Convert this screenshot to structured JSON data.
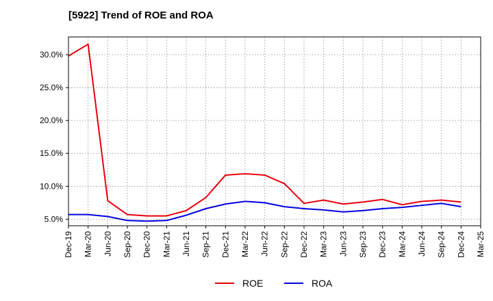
{
  "chart_data": {
    "type": "line",
    "title": "[5922]  Trend of ROE and ROA",
    "xlabel": "",
    "ylabel": "",
    "x": [
      "Dec-19",
      "Mar-20",
      "Jun-20",
      "Sep-20",
      "Dec-20",
      "Mar-21",
      "Jun-21",
      "Sep-21",
      "Dec-21",
      "Mar-22",
      "Jun-22",
      "Sep-22",
      "Dec-22",
      "Mar-23",
      "Jun-23",
      "Sep-23",
      "Dec-23",
      "Mar-24",
      "Jun-24",
      "Sep-24",
      "Dec-24",
      "Mar-25"
    ],
    "y_ticks": [
      "5.0%",
      "10.0%",
      "15.0%",
      "20.0%",
      "25.0%",
      "30.0%"
    ],
    "ylim": [
      4.0,
      32.7
    ],
    "grid": true,
    "legend_position": "bottom",
    "series": [
      {
        "name": "ROE",
        "color": "#e8000b",
        "values": [
          29.8,
          31.6,
          7.8,
          5.7,
          5.5,
          5.5,
          6.3,
          8.3,
          11.7,
          11.9,
          11.7,
          10.4,
          7.4,
          7.9,
          7.3,
          7.6,
          8.0,
          7.2,
          7.7,
          7.9,
          7.6,
          null
        ]
      },
      {
        "name": "ROA",
        "color": "#0000e0",
        "values": [
          5.7,
          5.7,
          5.4,
          4.8,
          4.7,
          4.8,
          5.6,
          6.6,
          7.3,
          7.7,
          7.5,
          6.9,
          6.6,
          6.4,
          6.1,
          6.3,
          6.6,
          6.8,
          7.1,
          7.4,
          6.9,
          null
        ]
      }
    ]
  }
}
